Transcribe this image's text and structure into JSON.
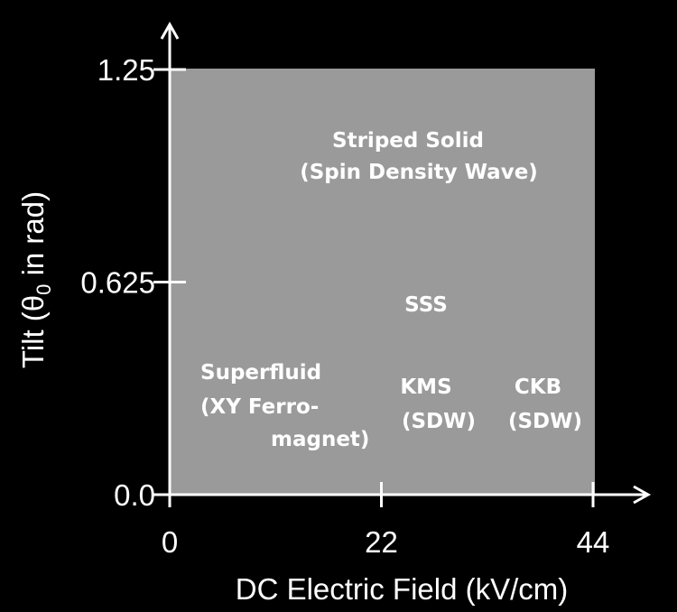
{
  "x_axis": {
    "label": "DC Electric Field (kV/cm)",
    "ticks": [
      0,
      22,
      44
    ]
  },
  "y_axis": {
    "label": {
      "before": "Tilt (θ",
      "subscript": "0",
      "after": " in rad)"
    },
    "ticks": [
      {
        "value": 0,
        "label": "0.0"
      },
      {
        "value": 0.625,
        "label": "0.625"
      },
      {
        "value": 1.25,
        "label": "1.25"
      }
    ]
  },
  "regions": [
    {
      "lines": [
        "Striped Solid",
        "(Spin Density Wave)"
      ]
    },
    {
      "lines": [
        "SSS"
      ]
    },
    {
      "lines": [
        "Superfluid",
        "(XY Ferro-",
        "magnet)"
      ]
    },
    {
      "lines": [
        "KMS",
        "(SDW)"
      ]
    },
    {
      "lines": [
        "CKB",
        "(SDW)"
      ]
    }
  ]
}
